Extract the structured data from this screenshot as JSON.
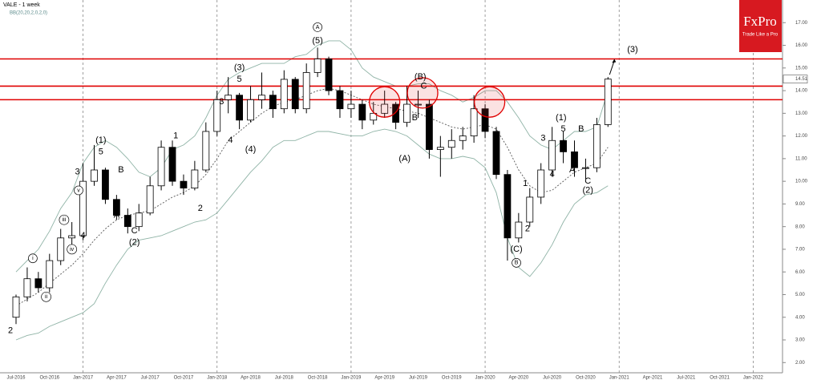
{
  "chart_data": {
    "type": "candlestick",
    "title": "VALE - 1 week",
    "subtitle": "BB(20,20,2,0,2,0)",
    "categories": [
      "Jul-2016",
      null,
      null,
      "Oct-2016",
      null,
      null,
      "Jan-2017",
      null,
      null,
      "Apr-2017",
      null,
      null,
      "Jul-2017",
      null,
      null,
      "Oct-2017",
      null,
      null,
      "Jan-2018",
      null,
      null,
      "Apr-2018",
      null,
      null,
      "Jul-2018",
      null,
      null,
      "Oct-2018",
      null,
      null,
      "Jan-2019",
      null,
      null,
      "Apr-2019",
      null,
      null,
      "Jul-2019",
      null,
      null,
      "Oct-2019",
      null,
      null,
      "Jan-2020",
      null,
      null,
      "Apr-2020",
      null,
      null,
      "Jul-2020",
      null,
      null,
      "Oct-2020",
      null,
      null,
      "Jan-2021",
      null,
      null,
      "Apr-2021",
      null,
      null,
      "Jul-2021",
      null,
      null,
      "Oct-2021",
      null,
      null,
      "Jan-2022"
    ],
    "open": [
      4.0,
      4.9,
      5.7,
      5.3,
      6.5,
      7.5,
      7.6,
      10.0,
      10.5,
      9.2,
      8.5,
      8.0,
      8.6,
      9.8,
      11.5,
      10.0,
      9.7,
      10.5,
      12.2,
      13.6,
      13.8,
      12.7,
      13.6,
      13.8,
      13.2,
      14.5,
      13.2,
      14.8,
      15.4,
      14.0,
      13.2,
      13.4,
      12.7,
      13.0,
      13.4,
      12.6,
      13.4,
      13.4,
      11.4,
      11.5,
      11.8,
      12.0,
      13.2,
      12.2,
      10.3,
      7.5,
      8.2,
      9.3,
      10.5,
      11.8,
      11.3,
      10.6,
      10.6,
      12.5,
      null,
      null,
      null,
      null,
      null,
      null,
      null,
      null,
      null,
      null,
      null,
      null,
      null
    ],
    "high": [
      5.0,
      6.2,
      6.0,
      6.8,
      7.9,
      8.2,
      10.8,
      11.6,
      10.6,
      9.4,
      8.8,
      9.0,
      10.2,
      11.8,
      11.8,
      10.3,
      10.9,
      12.6,
      14.0,
      14.6,
      13.9,
      14.2,
      14.8,
      14.0,
      14.9,
      14.6,
      15.2,
      15.9,
      15.5,
      14.2,
      14.0,
      13.6,
      13.5,
      14.0,
      13.5,
      14.2,
      14.0,
      13.6,
      12.0,
      12.3,
      12.4,
      13.8,
      13.4,
      12.4,
      10.5,
      8.6,
      9.7,
      10.8,
      12.4,
      12.2,
      11.8,
      11.0,
      12.8,
      14.6,
      null,
      null,
      null,
      null,
      null,
      null,
      null,
      null,
      null,
      null,
      null,
      null,
      null
    ],
    "low": [
      3.7,
      4.7,
      5.1,
      5.1,
      6.3,
      7.2,
      7.4,
      9.8,
      9.0,
      8.3,
      7.7,
      7.8,
      8.5,
      9.6,
      9.8,
      9.4,
      9.6,
      10.4,
      12.0,
      13.0,
      12.3,
      12.6,
      13.2,
      12.8,
      13.0,
      13.0,
      13.0,
      14.6,
      13.8,
      12.8,
      12.8,
      12.3,
      12.5,
      12.8,
      12.3,
      12.4,
      12.8,
      11.0,
      10.2,
      11.0,
      11.4,
      11.7,
      11.9,
      10.1,
      6.5,
      7.3,
      8.0,
      9.0,
      10.2,
      10.8,
      10.2,
      10.1,
      10.4,
      12.4,
      null,
      null,
      null,
      null,
      null,
      null,
      null,
      null,
      null,
      null,
      null,
      null,
      null
    ],
    "close": [
      4.9,
      5.7,
      5.3,
      6.5,
      7.5,
      7.6,
      10.0,
      10.5,
      9.2,
      8.5,
      8.0,
      8.6,
      9.8,
      11.5,
      10.0,
      9.7,
      10.5,
      12.2,
      13.6,
      13.8,
      12.7,
      13.6,
      13.8,
      13.2,
      14.5,
      13.2,
      14.8,
      15.4,
      14.0,
      13.2,
      13.4,
      12.7,
      13.0,
      13.4,
      12.6,
      13.4,
      13.4,
      11.4,
      11.5,
      11.8,
      12.0,
      13.2,
      12.2,
      10.3,
      7.5,
      8.2,
      9.3,
      10.5,
      11.8,
      11.3,
      10.6,
      10.6,
      12.5,
      14.51,
      null,
      null,
      null,
      null,
      null,
      null,
      null,
      null,
      null,
      null,
      null,
      null,
      null
    ],
    "bb_upper": [
      6.0,
      6.5,
      7.0,
      7.8,
      8.8,
      9.5,
      10.8,
      11.5,
      11.8,
      11.5,
      11.0,
      10.4,
      10.2,
      10.6,
      11.4,
      11.6,
      12.0,
      12.8,
      13.8,
      14.5,
      14.8,
      15.0,
      15.2,
      15.2,
      15.2,
      15.5,
      15.6,
      16.0,
      16.2,
      16.2,
      15.8,
      15.0,
      14.6,
      14.4,
      14.2,
      14.2,
      14.3,
      14.3,
      14.0,
      13.8,
      13.5,
      13.7,
      14.0,
      14.0,
      13.5,
      12.8,
      12.0,
      11.6,
      11.4,
      11.8,
      12.2,
      12.2,
      12.4,
      14.0,
      null,
      null,
      null,
      null,
      null,
      null,
      null,
      null,
      null,
      null,
      null,
      null,
      null
    ],
    "bb_middle": [
      4.5,
      4.8,
      5.1,
      5.5,
      5.9,
      6.3,
      6.8,
      7.4,
      7.9,
      8.3,
      8.5,
      8.6,
      8.7,
      9.0,
      9.3,
      9.5,
      9.8,
      10.3,
      11.0,
      11.8,
      12.2,
      12.6,
      13.0,
      13.3,
      13.5,
      13.6,
      13.8,
      14.0,
      14.1,
      14.0,
      13.8,
      13.6,
      13.4,
      13.3,
      13.2,
      13.1,
      13.0,
      12.8,
      12.6,
      12.4,
      12.3,
      12.4,
      12.5,
      12.3,
      11.5,
      10.5,
      9.8,
      9.5,
      9.6,
      10.0,
      10.4,
      10.6,
      10.8,
      11.5,
      null,
      null,
      null,
      null,
      null,
      null,
      null,
      null,
      null,
      null,
      null,
      null,
      null
    ],
    "bb_lower": [
      3.0,
      3.2,
      3.3,
      3.6,
      3.8,
      4.0,
      4.2,
      4.6,
      5.5,
      6.3,
      7.0,
      7.4,
      7.5,
      7.6,
      7.8,
      8.0,
      8.2,
      8.3,
      8.6,
      9.2,
      9.8,
      10.4,
      10.9,
      11.5,
      11.8,
      11.8,
      12.0,
      12.2,
      12.2,
      12.1,
      12.0,
      12.0,
      12.2,
      12.3,
      12.2,
      12.0,
      11.6,
      11.2,
      11.0,
      11.0,
      11.1,
      11.0,
      10.6,
      9.5,
      7.5,
      6.2,
      5.8,
      6.4,
      7.2,
      8.2,
      9.0,
      9.4,
      9.5,
      9.8,
      null,
      null,
      null,
      null,
      null,
      null,
      null,
      null,
      null,
      null,
      null,
      null,
      null
    ],
    "up_color": "#ffffff",
    "down_color": "#000000",
    "band_color": "#8fb3a6",
    "level_color": "#e00000",
    "levels": [
      15.4,
      14.2,
      13.6
    ],
    "highlights": [
      {
        "x": 33.0,
        "y": 13.5
      },
      {
        "x": 36.4,
        "y": 13.9
      },
      {
        "x": 42.4,
        "y": 13.5
      }
    ],
    "annotations": [
      {
        "text": "2",
        "x": -0.5,
        "y": 3.4
      },
      {
        "text": "i",
        "x": 1.5,
        "y": 6.6,
        "circled": true
      },
      {
        "text": "ii",
        "x": 2.7,
        "y": 4.9,
        "circled": true
      },
      {
        "text": "iii",
        "x": 4.3,
        "y": 8.3,
        "circled": true
      },
      {
        "text": "iv",
        "x": 5.0,
        "y": 7.0,
        "circled": true
      },
      {
        "text": "v",
        "x": 5.6,
        "y": 9.6,
        "circled": true
      },
      {
        "text": "3",
        "x": 5.5,
        "y": 10.4
      },
      {
        "text": "4",
        "x": 6.0,
        "y": 7.6
      },
      {
        "text": "(1)",
        "x": 7.6,
        "y": 11.8
      },
      {
        "text": "5",
        "x": 7.6,
        "y": 11.3
      },
      {
        "text": "B",
        "x": 9.4,
        "y": 10.5
      },
      {
        "text": "A",
        "x": 9.0,
        "y": 8.5
      },
      {
        "text": "C",
        "x": 10.6,
        "y": 7.8
      },
      {
        "text": "(2)",
        "x": 10.6,
        "y": 7.3
      },
      {
        "text": "1",
        "x": 14.3,
        "y": 12.0
      },
      {
        "text": "2",
        "x": 16.5,
        "y": 8.8
      },
      {
        "text": "3",
        "x": 18.4,
        "y": 13.5
      },
      {
        "text": "(3)",
        "x": 20.0,
        "y": 15.0
      },
      {
        "text": "5",
        "x": 20.0,
        "y": 14.5
      },
      {
        "text": "4",
        "x": 19.2,
        "y": 11.8
      },
      {
        "text": "(4)",
        "x": 21.0,
        "y": 11.4
      },
      {
        "text": "A",
        "x": 27.0,
        "y": 16.8,
        "circled": true
      },
      {
        "text": "(5)",
        "x": 27.0,
        "y": 16.2
      },
      {
        "text": "(B)",
        "x": 36.2,
        "y": 14.6
      },
      {
        "text": "C",
        "x": 36.5,
        "y": 14.2
      },
      {
        "text": "B",
        "x": 35.7,
        "y": 12.8
      },
      {
        "text": "(A)",
        "x": 34.8,
        "y": 11.0
      },
      {
        "text": "(C)",
        "x": 44.8,
        "y": 7.0
      },
      {
        "text": "B",
        "x": 44.8,
        "y": 6.4,
        "circled": true
      },
      {
        "text": "1",
        "x": 45.6,
        "y": 9.9
      },
      {
        "text": "2",
        "x": 45.8,
        "y": 7.9
      },
      {
        "text": "3",
        "x": 47.2,
        "y": 11.9
      },
      {
        "text": "(1)",
        "x": 48.8,
        "y": 12.8
      },
      {
        "text": "5",
        "x": 49.0,
        "y": 12.3
      },
      {
        "text": "4",
        "x": 48.0,
        "y": 10.3
      },
      {
        "text": "B",
        "x": 50.6,
        "y": 12.3
      },
      {
        "text": "A",
        "x": 49.8,
        "y": 10.5
      },
      {
        "text": "C",
        "x": 51.2,
        "y": 10.0
      },
      {
        "text": "(2)",
        "x": 51.2,
        "y": 9.6
      },
      {
        "text": "(3)",
        "x": 55.2,
        "y": 15.8
      }
    ],
    "ylim": [
      1.55,
      18
    ],
    "yticks": [
      {
        "value": 2,
        "label": "2.00"
      },
      {
        "value": 3,
        "label": "3.00"
      },
      {
        "value": 4,
        "label": "4.00"
      },
      {
        "value": 5,
        "label": "5.00"
      },
      {
        "value": 6,
        "label": "6.00"
      },
      {
        "value": 7,
        "label": "7.00"
      },
      {
        "value": 8,
        "label": "8.00"
      },
      {
        "value": 9,
        "label": "9.00"
      },
      {
        "value": 10,
        "label": "10.00"
      },
      {
        "value": 11,
        "label": "11.00"
      },
      {
        "value": 12,
        "label": "12.00"
      },
      {
        "value": 13,
        "label": "13.00"
      },
      {
        "value": 14,
        "label": "14.00"
      },
      {
        "value": 15,
        "label": "15.00"
      },
      {
        "value": 16,
        "label": "16.00"
      },
      {
        "value": 17,
        "label": "17.00"
      }
    ],
    "grid_every": 12
  },
  "logo": {
    "name": "FxPro",
    "tagline": "Trade Like a Pro"
  }
}
